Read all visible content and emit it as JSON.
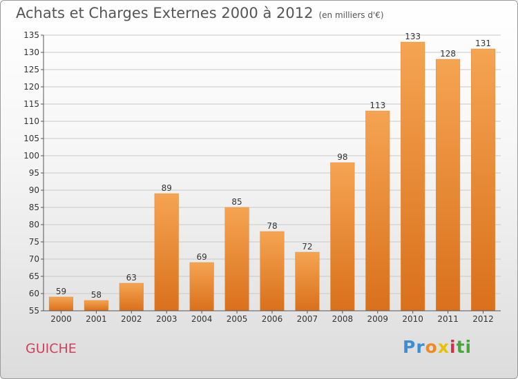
{
  "header": {
    "title": "Achats et Charges Externes 2000 à 2012",
    "unit": "(en milliers d'€)"
  },
  "footer": {
    "town": "GUICHE",
    "logo": "Proxiti"
  },
  "colors": {
    "bar_top": "#f5a452",
    "bar_bottom": "#d9701c",
    "accent": "#d0405a"
  },
  "chart_data": {
    "type": "bar",
    "title": "Achats et Charges Externes 2000 à 2012",
    "subtitle": "(en milliers d'€)",
    "xlabel": "",
    "ylabel": "",
    "categories": [
      "2000",
      "2001",
      "2002",
      "2003",
      "2004",
      "2005",
      "2006",
      "2007",
      "2008",
      "2009",
      "2010",
      "2011",
      "2012"
    ],
    "values": [
      59,
      58,
      63,
      89,
      69,
      85,
      78,
      72,
      98,
      113,
      133,
      128,
      131
    ],
    "ylim": [
      55,
      135
    ],
    "yticks": [
      55,
      60,
      65,
      70,
      75,
      80,
      85,
      90,
      95,
      100,
      105,
      110,
      115,
      120,
      125,
      130,
      135
    ],
    "grid": true
  }
}
